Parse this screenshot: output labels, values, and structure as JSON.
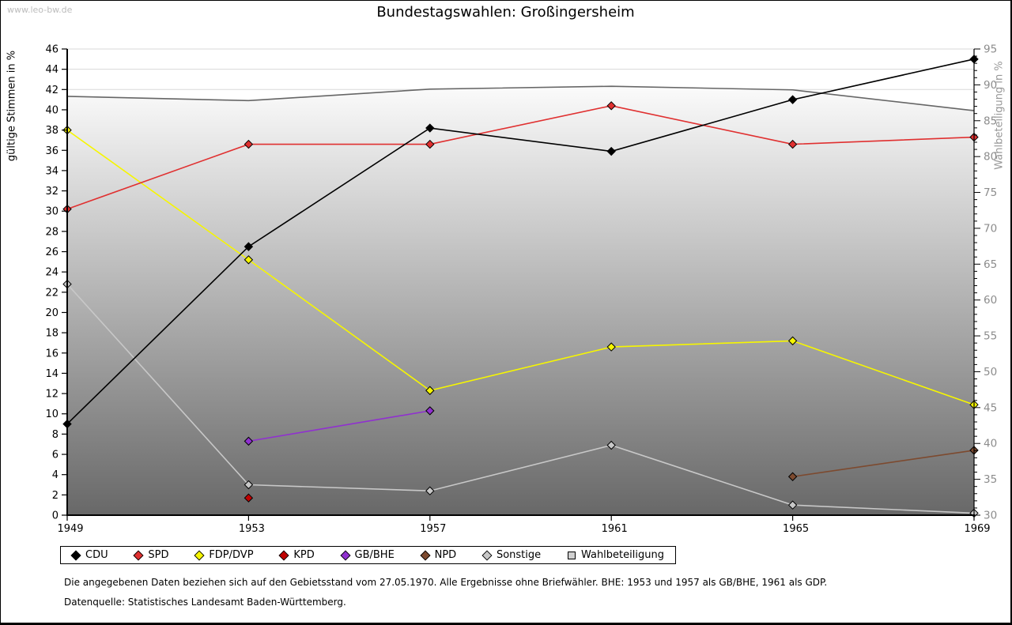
{
  "page": {
    "watermark": "www.leo-bw.de",
    "title": "Bundestagswahlen: Großingersheim",
    "footnote1": "Die angegebenen Daten beziehen sich auf den Gebietsstand vom 27.05.1970. Alle Ergebnisse ohne Briefwähler. BHE: 1953 und 1957 als GB/BHE, 1961 als GDP.",
    "footnote2": "Datenquelle: Statistisches Landesamt Baden-Württemberg."
  },
  "chart_data": {
    "type": "line",
    "title": "Bundestagswahlen: Großingersheim",
    "x": [
      1949,
      1953,
      1957,
      1961,
      1965,
      1969
    ],
    "ylabel_left": "gültige Stimmen in %",
    "ylabel_right": "Wahlbeteiligung in %",
    "ylim_left": [
      0,
      46
    ],
    "ytick_step_left": 2,
    "ylim_right": [
      30,
      95
    ],
    "ytick_step_right": 5,
    "ytick_minor_step_right": 1,
    "grid": true,
    "legend_position": "bottom",
    "colors": {
      "grid": "#d9d9d9",
      "axis": "#000000",
      "right_tick_label": "#8c8c8c",
      "area_top": "#fbfbfb",
      "area_bottom": "#686868"
    },
    "series": [
      {
        "name": "CDU",
        "color": "#000000",
        "marker": "diamond",
        "axis": "left",
        "values": [
          9.0,
          26.5,
          38.2,
          35.9,
          41.0,
          45.0
        ]
      },
      {
        "name": "SPD",
        "color": "#e03030",
        "marker": "diamond",
        "axis": "left",
        "values": [
          30.2,
          36.6,
          36.6,
          40.4,
          36.6,
          37.3
        ]
      },
      {
        "name": "FDP/DVP",
        "color": "#f6f600",
        "marker": "diamond",
        "axis": "left",
        "values": [
          38.0,
          25.2,
          12.3,
          16.6,
          17.2,
          10.9
        ]
      },
      {
        "name": "KPD",
        "color": "#c00000",
        "marker": "diamond",
        "axis": "left",
        "values": [
          null,
          1.7,
          null,
          null,
          null,
          null
        ]
      },
      {
        "name": "GB/BHE",
        "color": "#9030d0",
        "marker": "diamond",
        "axis": "left",
        "values": [
          null,
          7.3,
          10.3,
          null,
          null,
          null
        ]
      },
      {
        "name": "NPD",
        "color": "#7d4a2f",
        "marker": "diamond",
        "axis": "left",
        "values": [
          null,
          null,
          null,
          null,
          3.8,
          6.4
        ]
      },
      {
        "name": "Sonstige",
        "color": "#c8c8c8",
        "marker": "diamond",
        "axis": "left",
        "values": [
          22.8,
          3.0,
          2.4,
          6.9,
          1.0,
          0.2
        ]
      },
      {
        "name": "Wahlbeteiligung",
        "color": "#666666",
        "marker": "square",
        "axis": "right",
        "area": true,
        "legend_fill": "#d0d0d0",
        "values": [
          88.4,
          87.8,
          89.4,
          89.8,
          89.3,
          86.4
        ]
      }
    ]
  }
}
